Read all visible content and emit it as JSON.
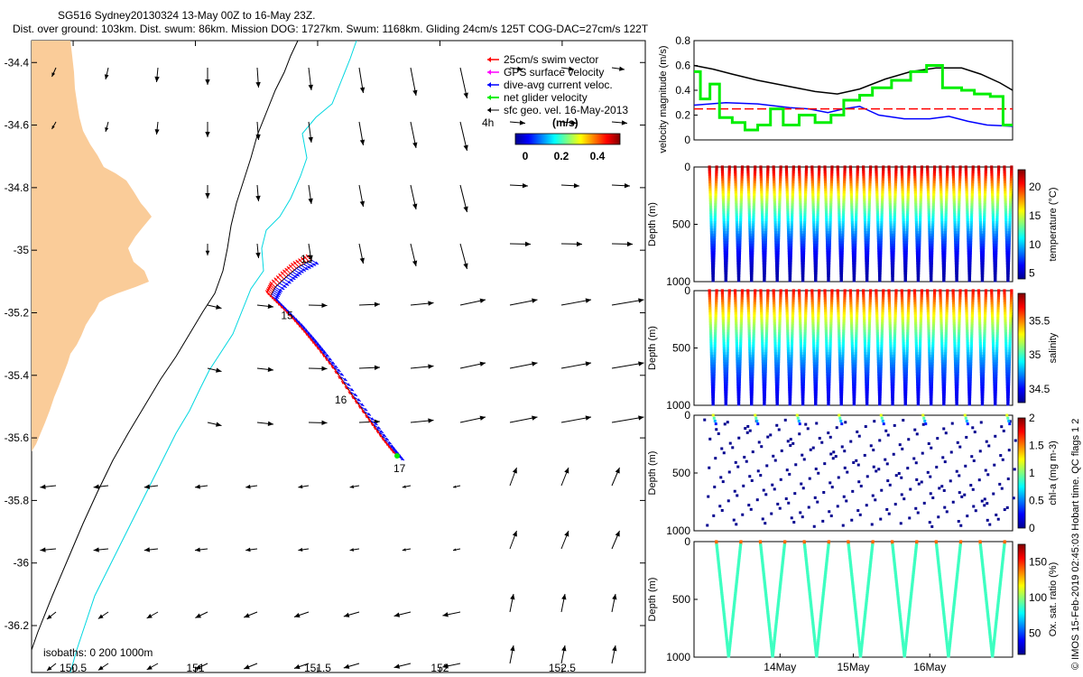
{
  "header": {
    "title": "SG516 Sydney20130324 13-May 00Z to 16-May 23Z.",
    "subtitle": "Dist. over ground: 103km. Dist. swum: 86km. Mission DOG: 1727km. Swum: 1168km. Gliding 24cm/s 125T COG-DAC=27cm/s 122T"
  },
  "side_note": "© IMOS 15-Feb-2019 02:45:03 Hobart time. QC flags 1  2",
  "colors": {
    "land": "#FACC99",
    "isobath_200": "#000000",
    "isobath_1000": "#00D7E0",
    "swim": "#FF0000",
    "dac": "#0000FF",
    "net": "#00EE00",
    "gps": "#FF00FF"
  },
  "map": {
    "xticks": [
      "150.5",
      "151",
      "151.5",
      "152",
      "152.5"
    ],
    "xtick_values": [
      150.5,
      151,
      151.5,
      152,
      152.5
    ],
    "yticks": [
      "-34.4",
      "-34.6",
      "-34.8",
      "-35",
      "-35.2",
      "-35.4",
      "-35.6",
      "-35.8",
      "-36",
      "-36.2"
    ],
    "ytick_values": [
      -34.4,
      -34.6,
      -34.8,
      -35,
      -35.2,
      -35.4,
      -35.6,
      -35.8,
      -36,
      -36.2
    ],
    "lon_range": [
      150.33,
      152.84
    ],
    "lat_range": [
      -36.35,
      -34.33
    ],
    "isobath_label": "isobaths: 0   200  1000m",
    "legend": {
      "items": [
        "25cm/s swim vector",
        "GPS surface velocity",
        "dive-avg current veloc.",
        "net glider velocity",
        "sfc geo. vel. 16-May-2013"
      ],
      "time_label": "4h",
      "colorbar_title": "(m/s)",
      "colorbar_ticks": [
        "0",
        "0.2",
        "0.4"
      ]
    },
    "day_labels": [
      {
        "text": "13",
        "lon": 151.43,
        "lat": -35.04
      },
      {
        "text": "15",
        "lon": 151.35,
        "lat": -35.22
      },
      {
        "text": "16",
        "lon": 151.57,
        "lat": -35.49
      },
      {
        "text": "17",
        "lon": 151.81,
        "lat": -35.71
      }
    ]
  },
  "chart_data": [
    {
      "type": "line",
      "ylabel": "velocity magnitude (m/s)",
      "ylim": [
        0,
        0.8
      ],
      "yticks": [
        "0",
        "0.2",
        "0.4",
        "0.6",
        "0.8"
      ],
      "series": [
        {
          "color": "#000000",
          "x": [
            0,
            0.06,
            0.12,
            0.2,
            0.3,
            0.38,
            0.45,
            0.52,
            0.6,
            0.68,
            0.76,
            0.84,
            0.9,
            0.96,
            1
          ],
          "values": [
            0.6,
            0.57,
            0.53,
            0.48,
            0.43,
            0.39,
            0.37,
            0.41,
            0.49,
            0.55,
            0.58,
            0.58,
            0.53,
            0.46,
            0.4
          ]
        },
        {
          "color": "#0000FF",
          "x": [
            0,
            0.1,
            0.2,
            0.3,
            0.36,
            0.42,
            0.47,
            0.52,
            0.58,
            0.66,
            0.74,
            0.8,
            0.86,
            0.92,
            1
          ],
          "values": [
            0.28,
            0.3,
            0.29,
            0.26,
            0.25,
            0.22,
            0.25,
            0.27,
            0.2,
            0.17,
            0.17,
            0.19,
            0.15,
            0.12,
            0.11
          ]
        },
        {
          "color": "#FF0000",
          "x": [
            0,
            1
          ],
          "values": [
            0.25,
            0.25
          ]
        },
        {
          "color": "#00EE00",
          "x": [
            0,
            0.02,
            0.02,
            0.05,
            0.05,
            0.08,
            0.08,
            0.12,
            0.12,
            0.16,
            0.16,
            0.2,
            0.2,
            0.24,
            0.24,
            0.28,
            0.28,
            0.33,
            0.33,
            0.38,
            0.38,
            0.43,
            0.43,
            0.47,
            0.47,
            0.52,
            0.52,
            0.56,
            0.56,
            0.62,
            0.62,
            0.68,
            0.68,
            0.73,
            0.73,
            0.78,
            0.78,
            0.84,
            0.84,
            0.88,
            0.88,
            0.93,
            0.93,
            0.97,
            0.97,
            1
          ],
          "values": [
            0.55,
            0.55,
            0.33,
            0.33,
            0.45,
            0.45,
            0.18,
            0.18,
            0.14,
            0.14,
            0.08,
            0.08,
            0.12,
            0.12,
            0.25,
            0.25,
            0.12,
            0.12,
            0.2,
            0.2,
            0.14,
            0.14,
            0.2,
            0.2,
            0.32,
            0.32,
            0.36,
            0.36,
            0.42,
            0.42,
            0.48,
            0.48,
            0.55,
            0.55,
            0.6,
            0.6,
            0.42,
            0.42,
            0.4,
            0.4,
            0.37,
            0.37,
            0.35,
            0.35,
            0.12,
            0.12
          ]
        }
      ]
    },
    {
      "type": "scatter",
      "ylabel": "Depth (m)",
      "yticks": [
        "0",
        "500",
        "1000"
      ],
      "ylim": [
        1000,
        0
      ],
      "colorbar_label": "temperature (°C)",
      "colorbar_ticks": [
        "5",
        "10",
        "15",
        "20"
      ],
      "clim": [
        4,
        23
      ],
      "profile": "temperature",
      "dives": 24,
      "max_depth": 1000,
      "surface_value": 22,
      "deep_value": 4.5
    },
    {
      "type": "scatter",
      "ylabel": "Depth (m)",
      "yticks": [
        "0",
        "500",
        "1000"
      ],
      "ylim": [
        1000,
        0
      ],
      "colorbar_label": "salinity",
      "colorbar_ticks": [
        "34.5",
        "35",
        "35.5"
      ],
      "clim": [
        34.3,
        35.9
      ],
      "profile": "salinity",
      "dives": 24,
      "max_depth": 1000,
      "surface_value": 35.7,
      "deep_value": 34.45
    },
    {
      "type": "scatter",
      "ylabel": "Depth (m)",
      "yticks": [
        "0",
        "500",
        "1000"
      ],
      "ylim": [
        1000,
        0
      ],
      "colorbar_label": "chl-a (mg m-3)",
      "colorbar_ticks": [
        "0",
        "0.5",
        "1",
        "1.5",
        "2"
      ],
      "clim": [
        0,
        2
      ],
      "profile": "chl-a",
      "dives": 22,
      "max_depth": 1000,
      "surface_value": 1.2,
      "deep_value": 0.05
    },
    {
      "type": "scatter",
      "ylabel": "Depth (m)",
      "yticks": [
        "0",
        "500",
        "1000"
      ],
      "ylim": [
        1000,
        0
      ],
      "colorbar_label": "Ox. sat. ratio (%)",
      "colorbar_ticks": [
        "50",
        "100",
        "150"
      ],
      "clim": [
        20,
        175
      ],
      "profile": "oxygen",
      "dives": 7,
      "max_depth": 1000,
      "surface_value": 105,
      "deep_value": 80,
      "xticks": [
        "14May",
        "15May",
        "16May"
      ]
    }
  ]
}
